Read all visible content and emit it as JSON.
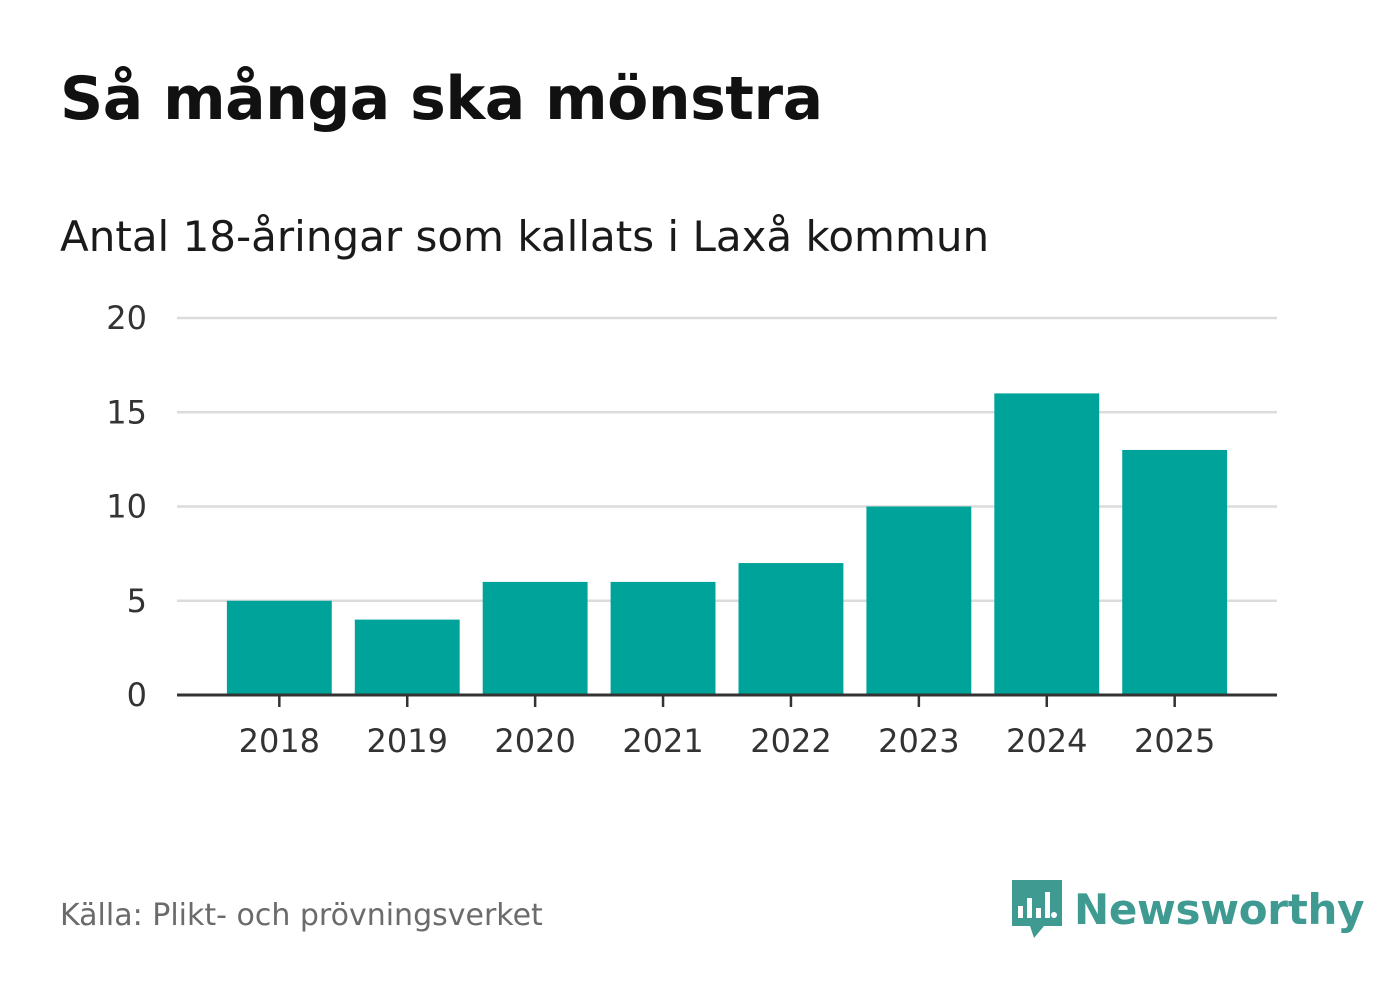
{
  "header": {
    "title": "Så många ska mönstra",
    "subtitle": "Antal 18-åringar som kallats i Laxå kommun"
  },
  "footer": {
    "source": "Källa: Plikt- och prövningsverket",
    "brand": "Newsworthy"
  },
  "colors": {
    "bar": "#00a39a",
    "grid": "#dcdcdc",
    "axis": "#333333",
    "brand": "#3f9a92"
  },
  "chart_data": {
    "type": "bar",
    "title": "Så många ska mönstra",
    "subtitle": "Antal 18-åringar som kallats i Laxå kommun",
    "xlabel": "",
    "ylabel": "",
    "categories": [
      "2018",
      "2019",
      "2020",
      "2021",
      "2022",
      "2023",
      "2024",
      "2025"
    ],
    "values": [
      5,
      4,
      6,
      6,
      7,
      10,
      16,
      13
    ],
    "ylim": [
      0,
      20
    ],
    "yticks": [
      "0",
      "5",
      "10",
      "15",
      "20"
    ],
    "grid": true,
    "legend": "none"
  }
}
